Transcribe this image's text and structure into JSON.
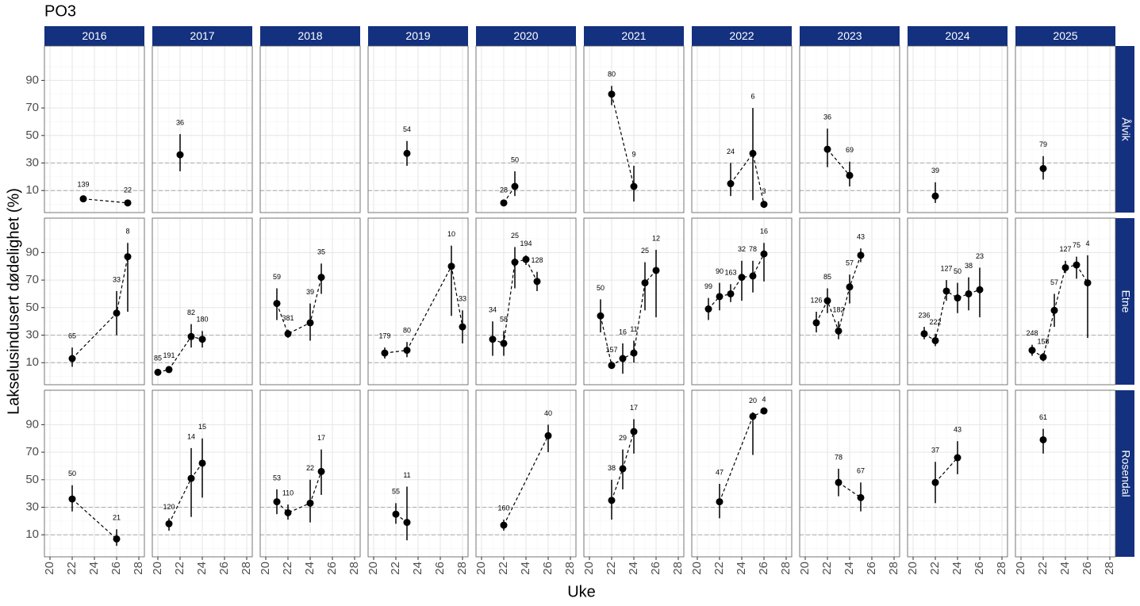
{
  "chart_data": {
    "type": "scatter",
    "title": "PO3",
    "x_label": "Uke",
    "y_label": "Lakselusindusert dødelighet (%)",
    "xlim": [
      19.5,
      28.5
    ],
    "xticks": [
      20,
      22,
      24,
      26,
      28
    ],
    "ylim": [
      -6,
      115
    ],
    "yticks": [
      10,
      30,
      50,
      70,
      90
    ],
    "hlines": [
      10,
      30
    ],
    "grid": true,
    "color": "#000000",
    "strip_color": "#14317f",
    "columns": [
      "2016",
      "2017",
      "2018",
      "2019",
      "2020",
      "2021",
      "2022",
      "2023",
      "2024",
      "2025"
    ],
    "rows": [
      {
        "name": "Ålvik",
        "panels": [
          {
            "x": [
              23,
              27
            ],
            "values": [
              4,
              1
            ],
            "lower": [
              2,
              0
            ],
            "upper": [
              6,
              2
            ],
            "n": [
              139,
              22
            ]
          },
          {
            "x": [
              22
            ],
            "values": [
              36
            ],
            "lower": [
              24
            ],
            "upper": [
              51
            ],
            "n": [
              36
            ]
          },
          {
            "x": [],
            "values": [],
            "lower": [],
            "upper": [],
            "n": []
          },
          {
            "x": [
              23
            ],
            "values": [
              37
            ],
            "lower": [
              28
            ],
            "upper": [
              46
            ],
            "n": [
              54
            ]
          },
          {
            "x": [
              22,
              23
            ],
            "values": [
              1,
              13
            ],
            "lower": [
              0,
              6
            ],
            "upper": [
              2,
              24
            ],
            "n": [
              28,
              50
            ]
          },
          {
            "x": [
              22,
              24
            ],
            "values": [
              80,
              13
            ],
            "lower": [
              72,
              2
            ],
            "upper": [
              86,
              28
            ],
            "n": [
              80,
              9
            ]
          },
          {
            "x": [
              23,
              25,
              26
            ],
            "values": [
              15,
              37,
              0
            ],
            "lower": [
              6,
              3,
              0
            ],
            "upper": [
              30,
              70,
              1
            ],
            "n": [
              24,
              6,
              3
            ]
          },
          {
            "x": [
              22,
              24
            ],
            "values": [
              40,
              21
            ],
            "lower": [
              27,
              13
            ],
            "upper": [
              55,
              31
            ],
            "n": [
              36,
              69
            ]
          },
          {
            "x": [
              22
            ],
            "values": [
              6
            ],
            "lower": [
              1
            ],
            "upper": [
              16
            ],
            "n": [
              39
            ]
          },
          {
            "x": [
              22
            ],
            "values": [
              26
            ],
            "lower": [
              18
            ],
            "upper": [
              35
            ],
            "n": [
              79
            ]
          }
        ]
      },
      {
        "name": "Etne",
        "panels": [
          {
            "x": [
              22,
              26,
              27
            ],
            "values": [
              13,
              46,
              87
            ],
            "lower": [
              7,
              30,
              47
            ],
            "upper": [
              21,
              62,
              97
            ],
            "n": [
              65,
              33,
              8
            ]
          },
          {
            "x": [
              20,
              21,
              23,
              24
            ],
            "values": [
              3,
              5,
              29,
              27
            ],
            "lower": [
              2,
              4,
              21,
              21
            ],
            "upper": [
              5,
              7,
              38,
              33
            ],
            "n": [
              85,
              191,
              82,
              180
            ]
          },
          {
            "x": [
              21,
              22,
              24,
              25
            ],
            "values": [
              53,
              31,
              39,
              72
            ],
            "lower": [
              41,
              28,
              26,
              60
            ],
            "upper": [
              64,
              34,
              53,
              82
            ],
            "n": [
              59,
              381,
              39,
              35
            ]
          },
          {
            "x": [
              21,
              23,
              27,
              28
            ],
            "values": [
              17,
              19,
              80,
              36
            ],
            "lower": [
              13,
              14,
              44,
              24
            ],
            "upper": [
              21,
              25,
              95,
              48
            ],
            "n": [
              179,
              80,
              10,
              33
            ]
          },
          {
            "x": [
              21,
              22,
              23,
              24,
              25
            ],
            "values": [
              27,
              24,
              83,
              85,
              69
            ],
            "lower": [
              15,
              15,
              64,
              81,
              62
            ],
            "upper": [
              40,
              33,
              94,
              88,
              76
            ],
            "n": [
              34,
              58,
              25,
              194,
              128
            ]
          },
          {
            "x": [
              21,
              22,
              23,
              24,
              25,
              26
            ],
            "values": [
              44,
              8,
              13,
              17,
              68,
              77
            ],
            "lower": [
              32,
              6,
              2,
              10,
              48,
              43
            ],
            "upper": [
              56,
              11,
              24,
              26,
              83,
              92
            ],
            "n": [
              50,
              157,
              16,
              11,
              25,
              12
            ]
          },
          {
            "x": [
              21,
              22,
              23,
              24,
              25,
              26
            ],
            "values": [
              49,
              58,
              60,
              72,
              73,
              89
            ],
            "lower": [
              41,
              48,
              54,
              55,
              61,
              69
            ],
            "upper": [
              57,
              68,
              67,
              84,
              84,
              97
            ],
            "n": [
              99,
              90,
              163,
              32,
              78,
              16
            ]
          },
          {
            "x": [
              21,
              22,
              23,
              24,
              25
            ],
            "values": [
              39,
              55,
              33,
              65,
              88
            ],
            "lower": [
              32,
              46,
              27,
              53,
              83
            ],
            "upper": [
              47,
              64,
              40,
              74,
              93
            ],
            "n": [
              126,
              85,
              182,
              57,
              43
            ]
          },
          {
            "x": [
              21,
              22,
              23,
              24,
              25,
              26
            ],
            "values": [
              31,
              26,
              62,
              57,
              60,
              63
            ],
            "lower": [
              27,
              22,
              55,
              46,
              48,
              43
            ],
            "upper": [
              36,
              31,
              70,
              68,
              72,
              79
            ],
            "n": [
              236,
              222,
              127,
              50,
              38,
              23
            ]
          },
          {
            "x": [
              21,
              22,
              23,
              24,
              25,
              26
            ],
            "values": [
              19,
              14,
              48,
              79,
              81,
              68
            ],
            "lower": [
              15,
              11,
              36,
              75,
              71,
              28
            ],
            "upper": [
              23,
              17,
              60,
              84,
              87,
              88
            ],
            "n": [
              248,
              158,
              57,
              127,
              75,
              4
            ]
          }
        ]
      },
      {
        "name": "Rosendal",
        "panels": [
          {
            "x": [
              22,
              26
            ],
            "values": [
              36,
              7
            ],
            "lower": [
              27,
              2
            ],
            "upper": [
              46,
              14
            ],
            "n": [
              50,
              21
            ]
          },
          {
            "x": [
              21,
              23,
              24
            ],
            "values": [
              18,
              51,
              62
            ],
            "lower": [
              13,
              23,
              37
            ],
            "upper": [
              22,
              73,
              80
            ],
            "n": [
              120,
              14,
              15
            ]
          },
          {
            "x": [
              21,
              22,
              24,
              25
            ],
            "values": [
              34,
              26,
              33,
              56
            ],
            "lower": [
              25,
              21,
              19,
              39
            ],
            "upper": [
              43,
              32,
              50,
              72
            ],
            "n": [
              53,
              110,
              22,
              17
            ]
          },
          {
            "x": [
              22,
              23
            ],
            "values": [
              25,
              19
            ],
            "lower": [
              18,
              6
            ],
            "upper": [
              33,
              45
            ],
            "n": [
              55,
              11
            ]
          },
          {
            "x": [
              22,
              26
            ],
            "values": [
              17,
              82
            ],
            "lower": [
              13,
              70
            ],
            "upper": [
              21,
              90
            ],
            "n": [
              160,
              40
            ]
          },
          {
            "x": [
              22,
              23,
              24
            ],
            "values": [
              35,
              58,
              85
            ],
            "lower": [
              21,
              43,
              69
            ],
            "upper": [
              50,
              72,
              94
            ],
            "n": [
              38,
              29,
              17
            ]
          },
          {
            "x": [
              22,
              25,
              26
            ],
            "values": [
              34,
              96,
              100
            ],
            "lower": [
              22,
              68,
              99
            ],
            "upper": [
              47,
              99,
              100
            ],
            "n": [
              47,
              20,
              4
            ]
          },
          {
            "x": [
              23,
              25
            ],
            "values": [
              48,
              37
            ],
            "lower": [
              38,
              27
            ],
            "upper": [
              58,
              48
            ],
            "n": [
              78,
              67
            ]
          },
          {
            "x": [
              22,
              24
            ],
            "values": [
              48,
              66
            ],
            "lower": [
              33,
              54
            ],
            "upper": [
              63,
              78
            ],
            "n": [
              37,
              43
            ]
          },
          {
            "x": [
              22
            ],
            "values": [
              79
            ],
            "lower": [
              69
            ],
            "upper": [
              87
            ],
            "n": [
              61
            ]
          }
        ]
      }
    ]
  }
}
